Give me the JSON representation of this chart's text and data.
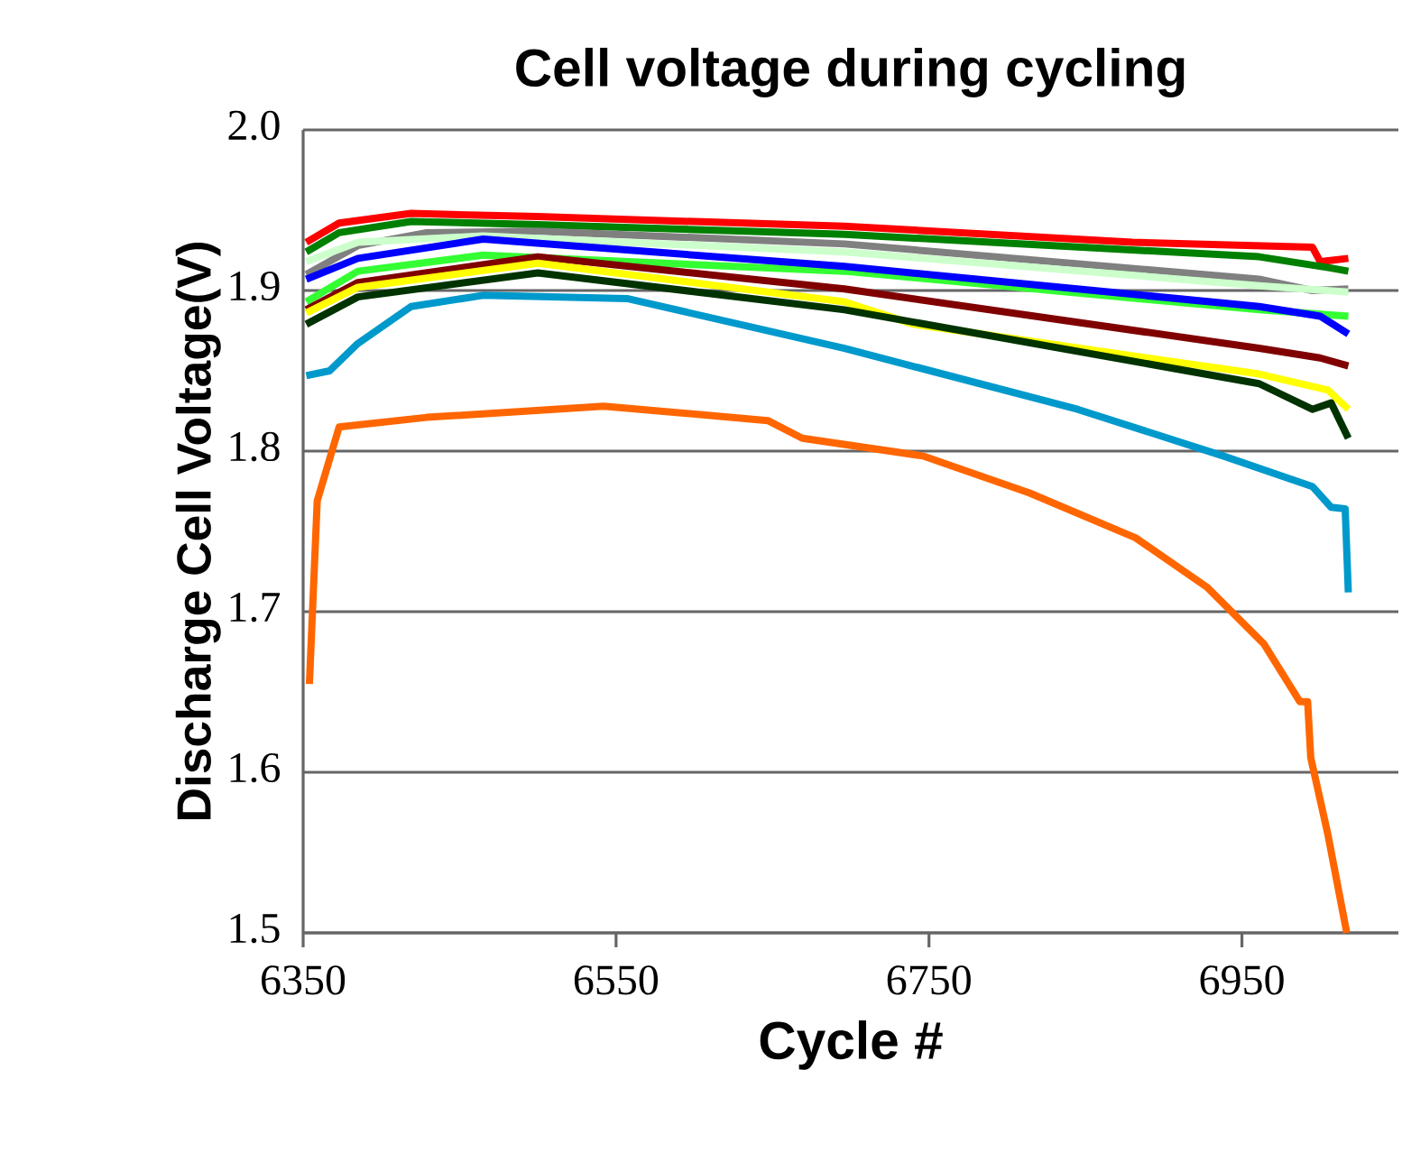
{
  "chart_data": {
    "type": "line",
    "title": "Cell voltage during cycling",
    "xlabel": "Cycle #",
    "ylabel": "Discharge Cell Voltage(V)",
    "xlim": [
      6350,
      7050
    ],
    "xticks": [
      6350,
      6550,
      6750,
      6950
    ],
    "ylim": [
      1.5,
      2.0
    ],
    "yticks": [
      1.5,
      1.6,
      1.7,
      1.8,
      1.9,
      {
        "value": 2,
        "label": "2.0"
      }
    ],
    "grid": "y",
    "legend": false,
    "marker": "none",
    "line_style": "solid",
    "series": [
      {
        "color": "#ff0000",
        "x": [
          6352,
          6373,
          6419,
          6500,
          6696,
          6880,
          6995,
          7000,
          7018
        ],
        "values": [
          1.93,
          1.942,
          1.948,
          1.946,
          1.94,
          1.93,
          1.927,
          1.918,
          1.92
        ]
      },
      {
        "color": "#008000",
        "x": [
          6352,
          6373,
          6419,
          6500,
          6696,
          6961,
          7007,
          7018
        ],
        "values": [
          1.924,
          1.936,
          1.943,
          1.941,
          1.935,
          1.921,
          1.914,
          1.912
        ]
      },
      {
        "color": "#808080",
        "x": [
          6352,
          6385,
          6429,
          6500,
          6696,
          6961,
          6995,
          7018
        ],
        "values": [
          1.91,
          1.928,
          1.936,
          1.937,
          1.929,
          1.907,
          1.9,
          1.901
        ]
      },
      {
        "color": "#ccffcc",
        "x": [
          6352,
          6385,
          6465,
          6696,
          6961,
          7018
        ],
        "values": [
          1.918,
          1.93,
          1.934,
          1.924,
          1.903,
          1.899
        ]
      },
      {
        "color": "#33ff33",
        "x": [
          6352,
          6385,
          6465,
          6696,
          6961,
          7018
        ],
        "values": [
          1.893,
          1.912,
          1.922,
          1.912,
          1.888,
          1.884
        ]
      },
      {
        "color": "#0000ff",
        "x": [
          6352,
          6385,
          6465,
          6696,
          6961,
          7000,
          7018
        ],
        "values": [
          1.907,
          1.92,
          1.932,
          1.915,
          1.89,
          1.884,
          1.873
        ]
      },
      {
        "color": "#800000",
        "x": [
          6352,
          6385,
          6500,
          6696,
          6961,
          7000,
          7018
        ],
        "values": [
          1.888,
          1.905,
          1.921,
          1.901,
          1.864,
          1.858,
          1.853
        ]
      },
      {
        "color": "#ffff00",
        "x": [
          6352,
          6385,
          6500,
          6696,
          6740,
          6961,
          7005,
          7018
        ],
        "values": [
          1.886,
          1.902,
          1.917,
          1.893,
          1.879,
          1.848,
          1.838,
          1.826
        ]
      },
      {
        "color": "#003300",
        "x": [
          6352,
          6385,
          6500,
          6696,
          6961,
          6995,
          7007,
          7018
        ],
        "values": [
          1.879,
          1.896,
          1.911,
          1.888,
          1.842,
          1.826,
          1.83,
          1.808
        ]
      },
      {
        "color": "#0099cc",
        "x": [
          6352,
          6367,
          6385,
          6419,
          6465,
          6557,
          6696,
          6845,
          6938,
          6995,
          7007,
          7016,
          7018
        ],
        "values": [
          1.847,
          1.85,
          1.867,
          1.89,
          1.897,
          1.895,
          1.864,
          1.826,
          1.797,
          1.778,
          1.765,
          1.764,
          1.712
        ]
      },
      {
        "color": "#ff6600",
        "x": [
          6354,
          6359,
          6373,
          6429,
          6542,
          6647,
          6669,
          6746,
          6814,
          6882,
          6928,
          6964,
          6987,
          6992,
          6994,
          7005,
          7017
        ],
        "values": [
          1.655,
          1.769,
          1.815,
          1.821,
          1.828,
          1.819,
          1.808,
          1.797,
          1.774,
          1.746,
          1.715,
          1.68,
          1.644,
          1.644,
          1.609,
          1.561,
          1.5
        ]
      }
    ]
  }
}
